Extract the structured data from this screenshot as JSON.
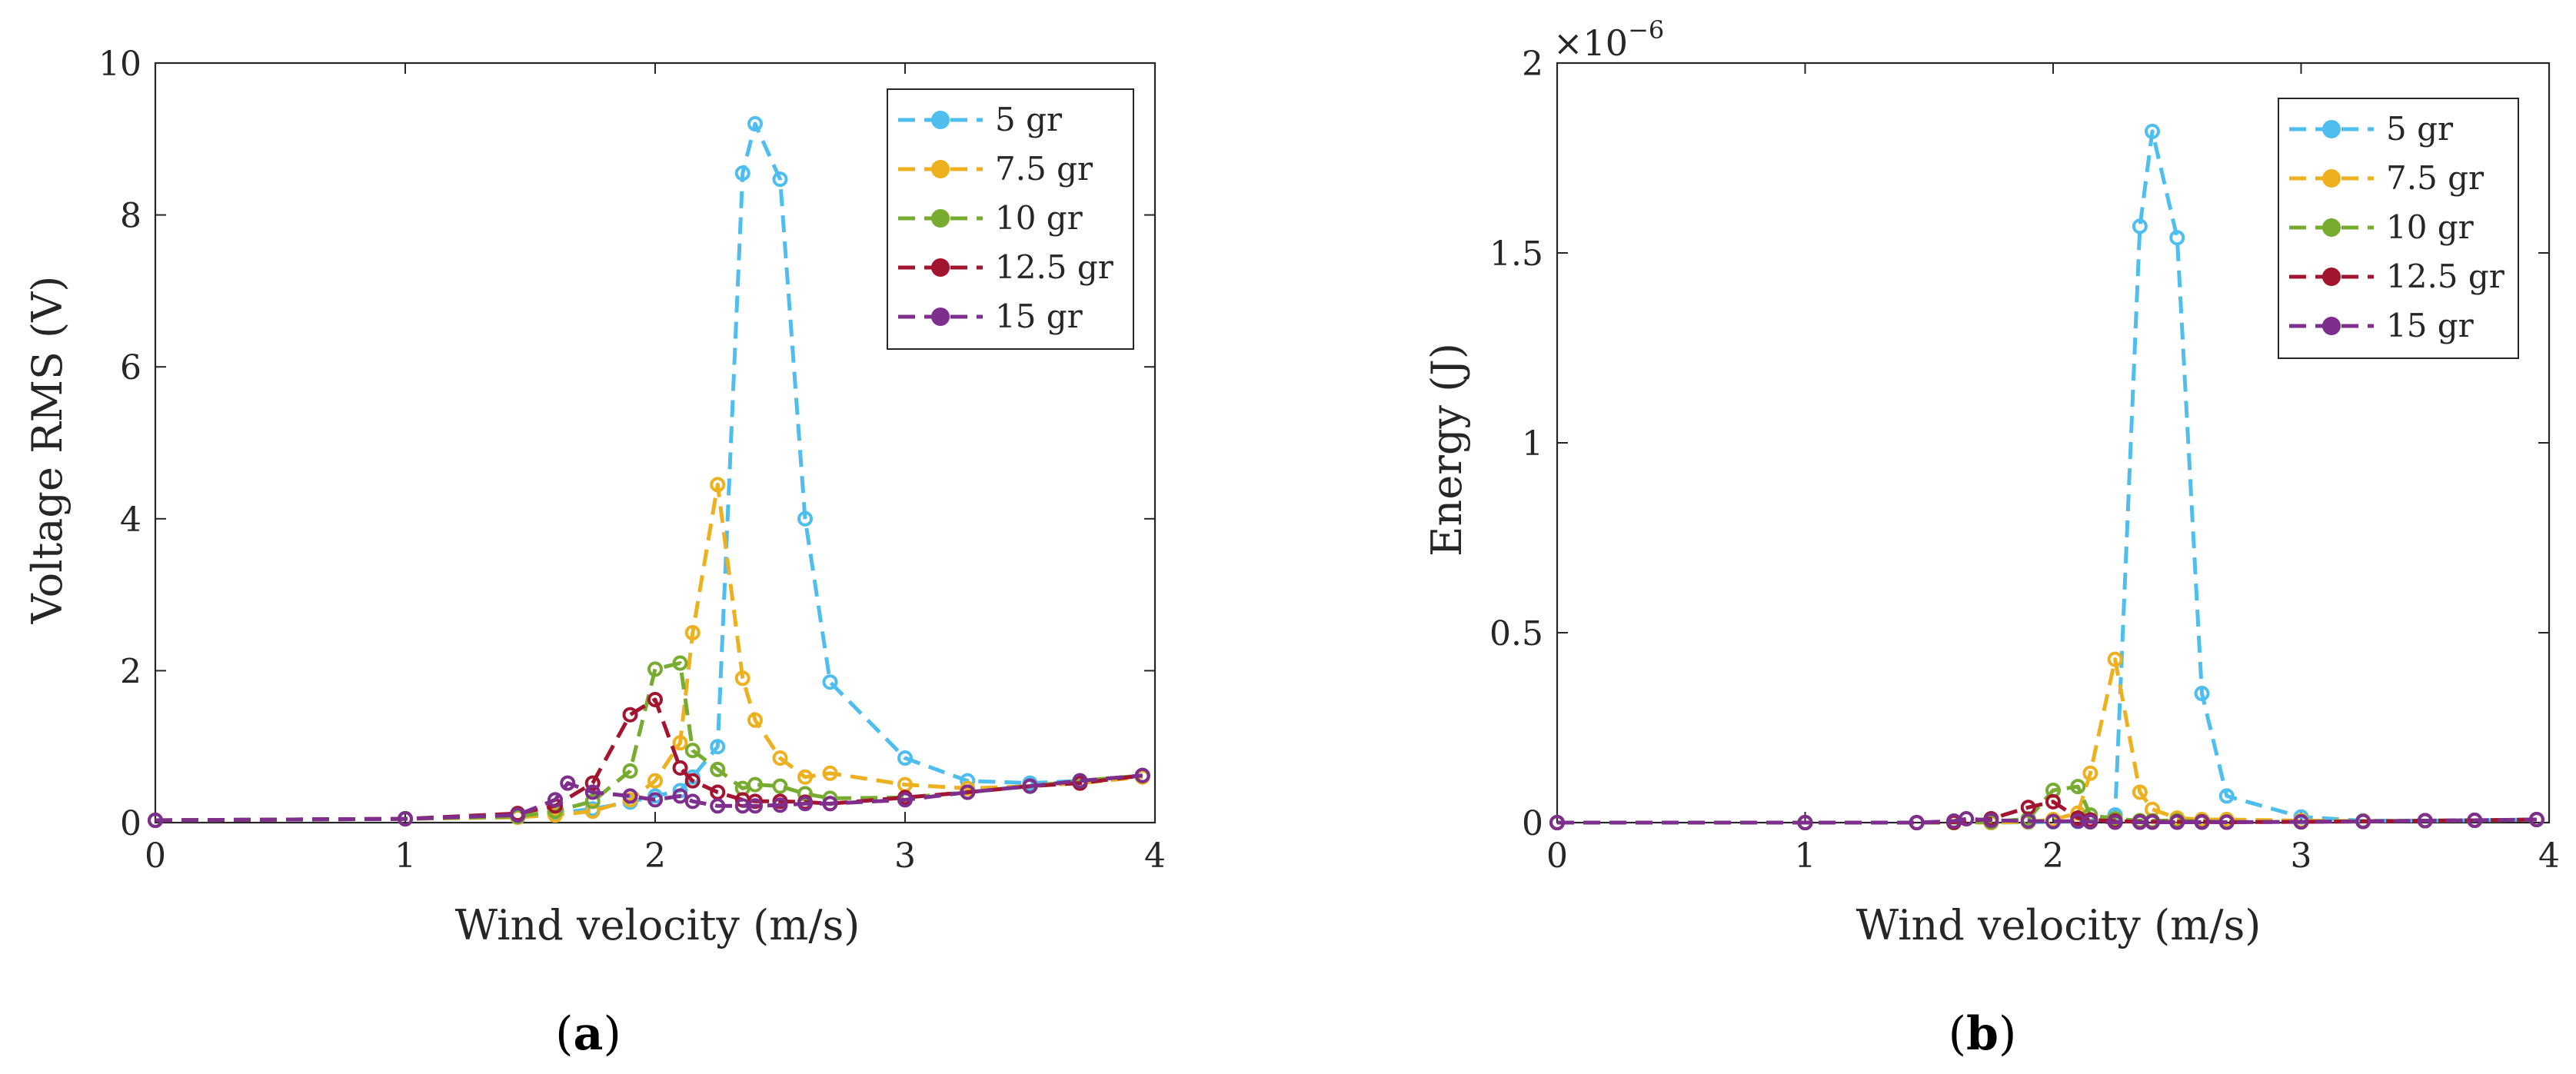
{
  "colors": {
    "5 gr": "#4DBEEE",
    "7.5 gr": "#EDB120",
    "10 gr": "#77AC30",
    "12.5 gr": "#A2142F",
    "15 gr": "#7E2F8E"
  },
  "chart_data": [
    {
      "type": "line",
      "panel_label": "a",
      "xlabel": "Wind velocity (m/s)",
      "ylabel": "Voltage RMS (V)",
      "xlim": [
        0,
        4
      ],
      "ylim": [
        0,
        10
      ],
      "xticks": [
        0,
        1,
        2,
        3,
        4
      ],
      "yticks": [
        0,
        2,
        4,
        6,
        8,
        10
      ],
      "xtick_labels": [
        "0",
        "1",
        "2",
        "3",
        "4"
      ],
      "ytick_labels": [
        "0",
        "2",
        "4",
        "6",
        "8",
        "10"
      ],
      "grid": false,
      "legend_position": "top-right",
      "series": [
        {
          "name": "5 gr",
          "x": [
            0,
            1,
            1.45,
            1.6,
            1.75,
            1.9,
            2.0,
            2.1,
            2.15,
            2.25,
            2.35,
            2.4,
            2.5,
            2.6,
            2.7,
            3.0,
            3.25,
            3.5,
            3.7,
            3.95
          ],
          "y": [
            0.03,
            0.05,
            0.08,
            0.12,
            0.18,
            0.27,
            0.35,
            0.42,
            0.6,
            1.0,
            8.55,
            9.2,
            8.47,
            4.0,
            1.85,
            0.85,
            0.55,
            0.52,
            0.55,
            0.62
          ]
        },
        {
          "name": "7.5 gr",
          "x": [
            0,
            1,
            1.45,
            1.6,
            1.75,
            1.9,
            2.0,
            2.1,
            2.15,
            2.25,
            2.35,
            2.4,
            2.5,
            2.6,
            2.7,
            3.0,
            3.25,
            3.5,
            3.7,
            3.95
          ],
          "y": [
            0.03,
            0.05,
            0.07,
            0.1,
            0.15,
            0.3,
            0.55,
            1.05,
            2.5,
            4.45,
            1.9,
            1.35,
            0.85,
            0.6,
            0.65,
            0.5,
            0.45,
            0.48,
            0.52,
            0.6
          ]
        },
        {
          "name": "10 gr",
          "x": [
            0,
            1,
            1.45,
            1.6,
            1.75,
            1.9,
            2.0,
            2.1,
            2.15,
            2.25,
            2.35,
            2.4,
            2.5,
            2.6,
            2.7,
            3.0,
            3.25,
            3.5,
            3.7,
            3.95
          ],
          "y": [
            0.03,
            0.05,
            0.08,
            0.15,
            0.28,
            0.68,
            2.02,
            2.1,
            0.95,
            0.7,
            0.45,
            0.5,
            0.48,
            0.38,
            0.32,
            0.33,
            0.4,
            0.48,
            0.55,
            0.62
          ]
        },
        {
          "name": "12.5 gr",
          "x": [
            0,
            1,
            1.45,
            1.6,
            1.75,
            1.9,
            2.0,
            2.1,
            2.15,
            2.25,
            2.35,
            2.4,
            2.5,
            2.6,
            2.7,
            3.0,
            3.25,
            3.5,
            3.7,
            3.95
          ],
          "y": [
            0.03,
            0.05,
            0.12,
            0.22,
            0.52,
            1.42,
            1.62,
            0.72,
            0.55,
            0.4,
            0.3,
            0.28,
            0.28,
            0.27,
            0.25,
            0.33,
            0.4,
            0.48,
            0.52,
            0.62
          ]
        },
        {
          "name": "15 gr",
          "x": [
            0,
            1,
            1.45,
            1.6,
            1.65,
            1.75,
            1.9,
            2.0,
            2.1,
            2.15,
            2.25,
            2.35,
            2.4,
            2.5,
            2.6,
            2.7,
            3.0,
            3.25,
            3.5,
            3.7,
            3.95
          ],
          "y": [
            0.03,
            0.05,
            0.1,
            0.3,
            0.52,
            0.4,
            0.35,
            0.3,
            0.35,
            0.28,
            0.22,
            0.22,
            0.22,
            0.23,
            0.25,
            0.25,
            0.3,
            0.4,
            0.48,
            0.55,
            0.62
          ]
        }
      ]
    },
    {
      "type": "line",
      "panel_label": "b",
      "xlabel": "Wind velocity (m/s)",
      "ylabel": "Energy (J)",
      "y_multiplier": "×10",
      "y_exponent": "−6",
      "xlim": [
        0,
        4
      ],
      "ylim": [
        0,
        2
      ],
      "xticks": [
        0,
        1,
        2,
        3,
        4
      ],
      "yticks": [
        0,
        0.5,
        1,
        1.5,
        2
      ],
      "xtick_labels": [
        "0",
        "1",
        "2",
        "3",
        "4"
      ],
      "ytick_labels": [
        "0",
        "0.5",
        "1",
        "1.5",
        "2"
      ],
      "grid": false,
      "legend_position": "top-right",
      "series": [
        {
          "name": "5 gr",
          "x": [
            0,
            1,
            1.45,
            1.6,
            1.75,
            1.9,
            2.0,
            2.1,
            2.15,
            2.25,
            2.35,
            2.4,
            2.5,
            2.6,
            2.7,
            3.0,
            3.25,
            3.5,
            3.7,
            3.95
          ],
          "y": [
            0,
            0,
            0,
            0,
            0,
            0.001,
            0.002,
            0.003,
            0.005,
            0.02,
            1.57,
            1.82,
            1.54,
            0.34,
            0.07,
            0.015,
            0.005,
            0.005,
            0.006,
            0.008
          ]
        },
        {
          "name": "7.5 gr",
          "x": [
            0,
            1,
            1.45,
            1.6,
            1.75,
            1.9,
            2.0,
            2.1,
            2.15,
            2.25,
            2.35,
            2.4,
            2.5,
            2.6,
            2.7,
            3.0,
            3.25,
            3.5,
            3.7,
            3.95
          ],
          "y": [
            0,
            0,
            0,
            0,
            0,
            0.002,
            0.008,
            0.025,
            0.13,
            0.43,
            0.08,
            0.035,
            0.012,
            0.008,
            0.008,
            0.005,
            0.004,
            0.005,
            0.006,
            0.008
          ]
        },
        {
          "name": "10 gr",
          "x": [
            0,
            1,
            1.45,
            1.6,
            1.75,
            1.9,
            2.0,
            2.1,
            2.15,
            2.25,
            2.35,
            2.4,
            2.5,
            2.6,
            2.7,
            3.0,
            3.25,
            3.5,
            3.7,
            3.95
          ],
          "y": [
            0,
            0,
            0,
            0,
            0.002,
            0.01,
            0.085,
            0.095,
            0.02,
            0.01,
            0.005,
            0.005,
            0.005,
            0.003,
            0.002,
            0.002,
            0.003,
            0.005,
            0.006,
            0.008
          ]
        },
        {
          "name": "12.5 gr",
          "x": [
            0,
            1,
            1.45,
            1.6,
            1.75,
            1.9,
            2.0,
            2.1,
            2.15,
            2.25,
            2.35,
            2.4,
            2.5,
            2.6,
            2.7,
            3.0,
            3.25,
            3.5,
            3.7,
            3.95
          ],
          "y": [
            0,
            0,
            0,
            0.001,
            0.01,
            0.04,
            0.055,
            0.012,
            0.007,
            0.004,
            0.002,
            0.002,
            0.002,
            0.002,
            0.001,
            0.002,
            0.003,
            0.005,
            0.006,
            0.008
          ]
        },
        {
          "name": "15 gr",
          "x": [
            0,
            1,
            1.45,
            1.6,
            1.65,
            1.75,
            1.9,
            2.0,
            2.1,
            2.15,
            2.25,
            2.35,
            2.4,
            2.5,
            2.6,
            2.7,
            3.0,
            3.25,
            3.5,
            3.7,
            3.95
          ],
          "y": [
            0,
            0,
            0,
            0.004,
            0.01,
            0.006,
            0.004,
            0.003,
            0.004,
            0.002,
            0.001,
            0.001,
            0.001,
            0.001,
            0.001,
            0.001,
            0.002,
            0.003,
            0.005,
            0.006,
            0.008
          ]
        }
      ]
    }
  ]
}
